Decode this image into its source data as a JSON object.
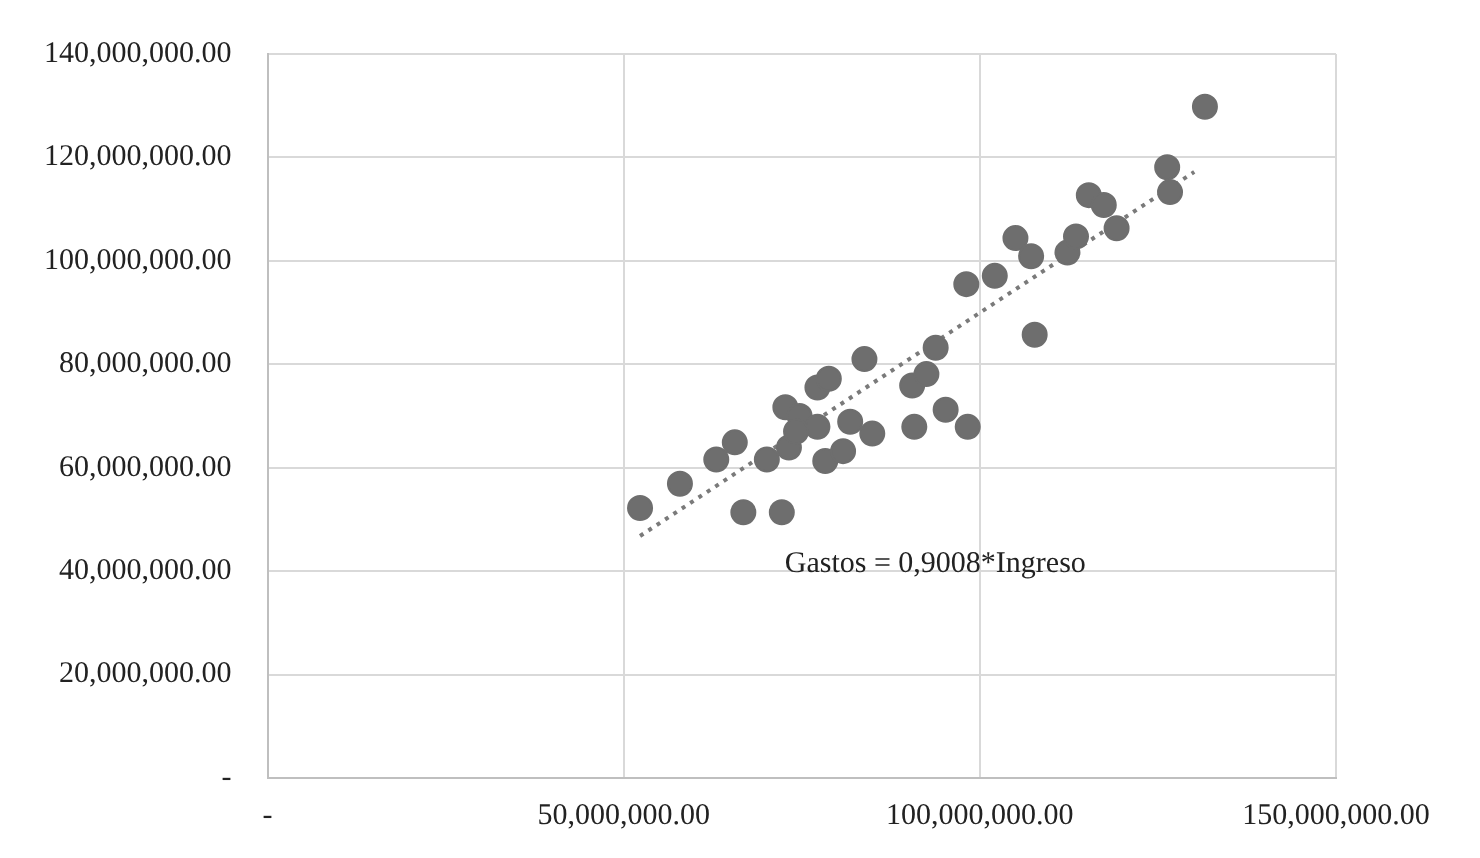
{
  "chart_data": {
    "type": "scatter",
    "marker": "circle",
    "grid": true,
    "legend": false,
    "xlim": [
      0,
      150000000
    ],
    "ylim": [
      0,
      140000000
    ],
    "xticks": [
      {
        "value": 0,
        "label": "-"
      },
      {
        "value": 50000000,
        "label": "50,000,000.00"
      },
      {
        "value": 100000000,
        "label": "100,000,000.00"
      },
      {
        "value": 150000000,
        "label": "150,000,000.00"
      }
    ],
    "yticks": [
      {
        "value": 0,
        "label": "-"
      },
      {
        "value": 20000000,
        "label": "20,000,000.00"
      },
      {
        "value": 40000000,
        "label": "40,000,000.00"
      },
      {
        "value": 60000000,
        "label": "60,000,000.00"
      },
      {
        "value": 80000000,
        "label": "80,000,000.00"
      },
      {
        "value": 100000000,
        "label": "100,000,000.00"
      },
      {
        "value": 120000000,
        "label": "120,000,000.00"
      },
      {
        "value": 140000000,
        "label": "140,000,000.00"
      }
    ],
    "series": [
      {
        "color": "#6e6e6e",
        "x": [
          52300000,
          57900000,
          66800000,
          72200000,
          63000000,
          65600000,
          70100000,
          73200000,
          72700000,
          74700000,
          77200000,
          78800000,
          77200000,
          78300000,
          80800000,
          81800000,
          84900000,
          83800000,
          90800000,
          90500000,
          92500000,
          93800000,
          95200000,
          98300000,
          98100000,
          102100000,
          105000000,
          107200000,
          107700000,
          112300000,
          113500000,
          115300000,
          117400000,
          119200000,
          126300000,
          126700000,
          131600000,
          74200000
        ],
        "values": [
          52200000,
          56900000,
          51400000,
          51400000,
          61600000,
          64900000,
          61600000,
          63900000,
          71700000,
          70000000,
          75500000,
          77200000,
          67900000,
          61300000,
          63200000,
          68900000,
          66600000,
          81000000,
          67900000,
          75900000,
          78100000,
          83200000,
          71200000,
          67900000,
          95500000,
          97100000,
          104400000,
          100900000,
          85700000,
          101600000,
          104700000,
          112700000,
          110800000,
          106300000,
          118100000,
          113300000,
          129800000,
          67000000
        ]
      },
      {
        "type": "line",
        "color": "#7a7a7a",
        "line_style": "dotted",
        "marker": "none",
        "x": [
          52300000,
          130100000
        ],
        "values": [
          46800000,
          117200000
        ]
      }
    ],
    "annotations": [
      "Gastos = 0,9008*Ingreso"
    ]
  }
}
